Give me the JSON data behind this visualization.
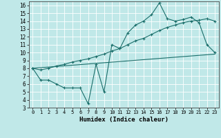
{
  "title": "",
  "xlabel": "Humidex (Indice chaleur)",
  "bg_color": "#c0e8e8",
  "grid_color": "#ffffff",
  "line_color": "#1a6e6a",
  "xlim": [
    -0.5,
    23.5
  ],
  "ylim": [
    3,
    16.5
  ],
  "yticks": [
    3,
    4,
    5,
    6,
    7,
    8,
    9,
    10,
    11,
    12,
    13,
    14,
    15,
    16
  ],
  "xticks": [
    0,
    1,
    2,
    3,
    4,
    5,
    6,
    7,
    8,
    9,
    10,
    11,
    12,
    13,
    14,
    15,
    16,
    17,
    18,
    19,
    20,
    21,
    22,
    23
  ],
  "line1_x": [
    0,
    1,
    2,
    3,
    4,
    5,
    6,
    7,
    8,
    9,
    10,
    11,
    12,
    13,
    14,
    15,
    16,
    17,
    18,
    19,
    20,
    21,
    22,
    23
  ],
  "line1_y": [
    8.0,
    6.5,
    6.5,
    6.0,
    5.5,
    5.5,
    5.5,
    3.5,
    8.5,
    5.0,
    11.0,
    10.5,
    12.5,
    13.5,
    14.0,
    14.8,
    16.3,
    14.3,
    14.0,
    14.2,
    14.5,
    13.8,
    11.0,
    10.0
  ],
  "line2_x": [
    0,
    1,
    2,
    3,
    4,
    5,
    6,
    7,
    8,
    9,
    10,
    11,
    12,
    13,
    14,
    15,
    16,
    17,
    18,
    19,
    20,
    21,
    22,
    23
  ],
  "line2_y": [
    8.0,
    7.8,
    8.0,
    8.3,
    8.5,
    8.8,
    9.0,
    9.2,
    9.5,
    9.8,
    10.2,
    10.5,
    11.0,
    11.5,
    11.8,
    12.3,
    12.8,
    13.2,
    13.5,
    13.8,
    14.0,
    14.1,
    14.3,
    14.0
  ],
  "line3_x": [
    0,
    23
  ],
  "line3_y": [
    8.0,
    9.8
  ]
}
